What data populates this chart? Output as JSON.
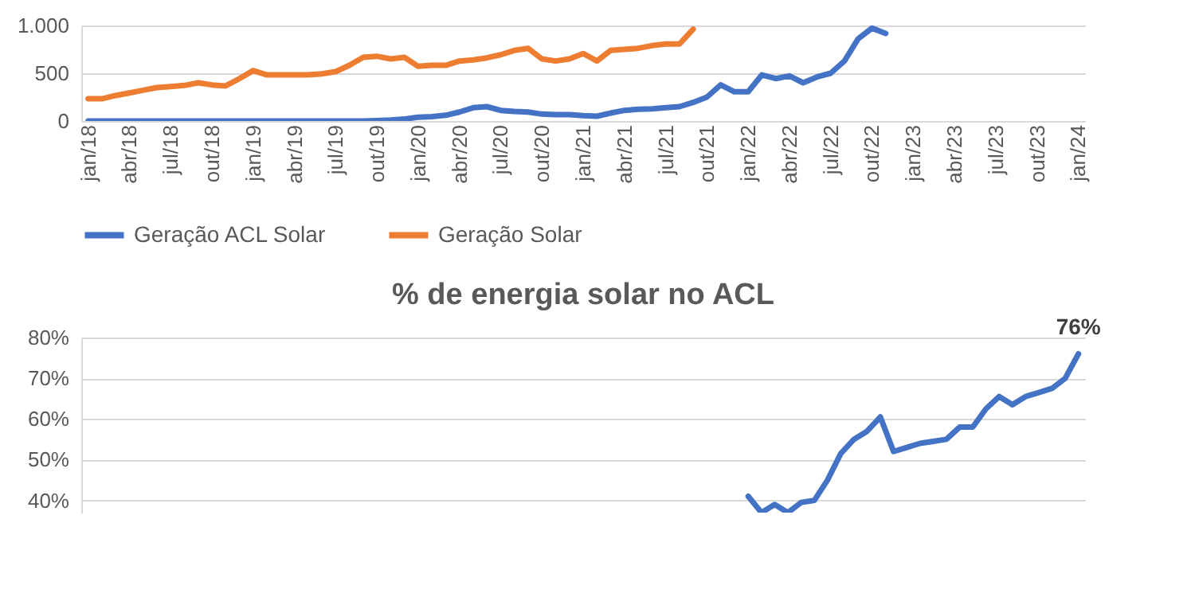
{
  "chart_data": [
    {
      "type": "line",
      "categories": [
        "jan/18",
        null,
        null,
        "abr/18",
        null,
        null,
        "jul/18",
        null,
        null,
        "out/18",
        null,
        null,
        "jan/19",
        null,
        null,
        "abr/19",
        null,
        null,
        "jul/19",
        null,
        null,
        "out/19",
        null,
        null,
        "jan/20",
        null,
        null,
        "abr/20",
        null,
        null,
        "jul/20",
        null,
        null,
        "out/20",
        null,
        null,
        "jan/21",
        null,
        null,
        "abr/21",
        null,
        null,
        "jul/21",
        null,
        null,
        "out/21",
        null,
        null,
        "jan/22",
        null,
        null,
        "abr/22",
        null,
        null,
        "jul/22",
        null,
        null,
        "out/22",
        null,
        null,
        "jan/23",
        null,
        null,
        "abr/23",
        null,
        null,
        "jul/23",
        null,
        null,
        "out/23",
        null,
        null,
        "jan/24"
      ],
      "series": [
        {
          "name": "Geração ACL Solar",
          "color": "#4472c4",
          "values": [
            0,
            0,
            0,
            0,
            0,
            0,
            0,
            0,
            0,
            0,
            0,
            0,
            0,
            0,
            0,
            0,
            0,
            0,
            0,
            0,
            0,
            5,
            10,
            20,
            40,
            45,
            60,
            94,
            139,
            150,
            111,
            100,
            94,
            72,
            67,
            67,
            56,
            50,
            83,
            111,
            122,
            128,
            139,
            150,
            194,
            250,
            378,
            306,
            306,
            483,
            444,
            472,
            400,
            461,
            500,
            628,
            861,
            972,
            917,
            null,
            null,
            null,
            null,
            null,
            null,
            null,
            null,
            null,
            null,
            null,
            null,
            null,
            null
          ]
        },
        {
          "name": "Geração Solar",
          "color": "#ed7d31",
          "values": [
            233,
            233,
            267,
            294,
            322,
            350,
            361,
            372,
            400,
            378,
            367,
            444,
            528,
            483,
            483,
            483,
            483,
            494,
            517,
            583,
            667,
            678,
            650,
            667,
            572,
            583,
            583,
            628,
            639,
            661,
            694,
            739,
            761,
            650,
            628,
            650,
            706,
            628,
            739,
            750,
            761,
            789,
            806,
            806,
            961,
            null,
            null,
            null,
            null,
            null,
            null,
            null,
            null,
            null,
            null,
            null,
            null,
            null,
            null,
            null,
            null,
            null,
            null,
            null,
            null,
            null,
            null,
            null,
            null,
            null,
            null,
            null,
            null
          ]
        }
      ],
      "ylim": [
        0,
        1000
      ],
      "yticks": [
        0,
        500,
        {
          "value": 1000,
          "label": "1.000"
        }
      ],
      "grid": "y",
      "legend": "bottom"
    },
    {
      "type": "line",
      "title": "% de energia solar no ACL",
      "categories": [
        null,
        null,
        null,
        null,
        null,
        null,
        null,
        null,
        null,
        null,
        null,
        null,
        null,
        null,
        null,
        null,
        null,
        null,
        null,
        null,
        null,
        null,
        null,
        null,
        null,
        null,
        null,
        null,
        null,
        null,
        null,
        null,
        null,
        null,
        null,
        null,
        null,
        null,
        null,
        null,
        null,
        null,
        null,
        null,
        null,
        null,
        null,
        null,
        null,
        null,
        null,
        null,
        null,
        null,
        null,
        null,
        null,
        null,
        null,
        null,
        null,
        null,
        null,
        null,
        null,
        null,
        null,
        null,
        null,
        null,
        null,
        null,
        null,
        null,
        null,
        null
      ],
      "series": [
        {
          "color": "#4472c4",
          "values": [
            null,
            null,
            null,
            null,
            null,
            null,
            null,
            null,
            null,
            null,
            null,
            null,
            null,
            null,
            null,
            null,
            null,
            null,
            null,
            null,
            null,
            null,
            null,
            null,
            null,
            null,
            null,
            null,
            null,
            null,
            null,
            null,
            null,
            null,
            null,
            null,
            null,
            null,
            null,
            null,
            null,
            null,
            null,
            null,
            null,
            null,
            null,
            null,
            null,
            null,
            41,
            37,
            39,
            37,
            39.5,
            40,
            45,
            51.5,
            55,
            57,
            60.5,
            52,
            53,
            54,
            54.5,
            55,
            58,
            58,
            62.5,
            65.5,
            63.5,
            65.5,
            66.5,
            67.5,
            70,
            76
          ],
          "value_labels": [
            null,
            null,
            null,
            null,
            null,
            null,
            null,
            null,
            null,
            null,
            null,
            null,
            null,
            null,
            null,
            null,
            null,
            null,
            null,
            null,
            null,
            null,
            null,
            null,
            null,
            null,
            null,
            null,
            null,
            null,
            null,
            null,
            null,
            null,
            null,
            null,
            null,
            null,
            null,
            null,
            null,
            null,
            null,
            null,
            null,
            null,
            null,
            null,
            null,
            null,
            null,
            null,
            null,
            null,
            null,
            null,
            null,
            null,
            null,
            null,
            null,
            null,
            null,
            null,
            null,
            null,
            null,
            null,
            null,
            null,
            null,
            null,
            null,
            null,
            null,
            "76%"
          ]
        }
      ],
      "ylim": [
        37,
        80
      ],
      "yticks": [
        {
          "value": 40,
          "label": "40%"
        },
        {
          "value": 50,
          "label": "50%"
        },
        {
          "value": 60,
          "label": "60%"
        },
        {
          "value": 70,
          "label": "70%"
        },
        {
          "value": 80,
          "label": "80%"
        }
      ],
      "grid": "y",
      "tick_labels": "y"
    }
  ]
}
